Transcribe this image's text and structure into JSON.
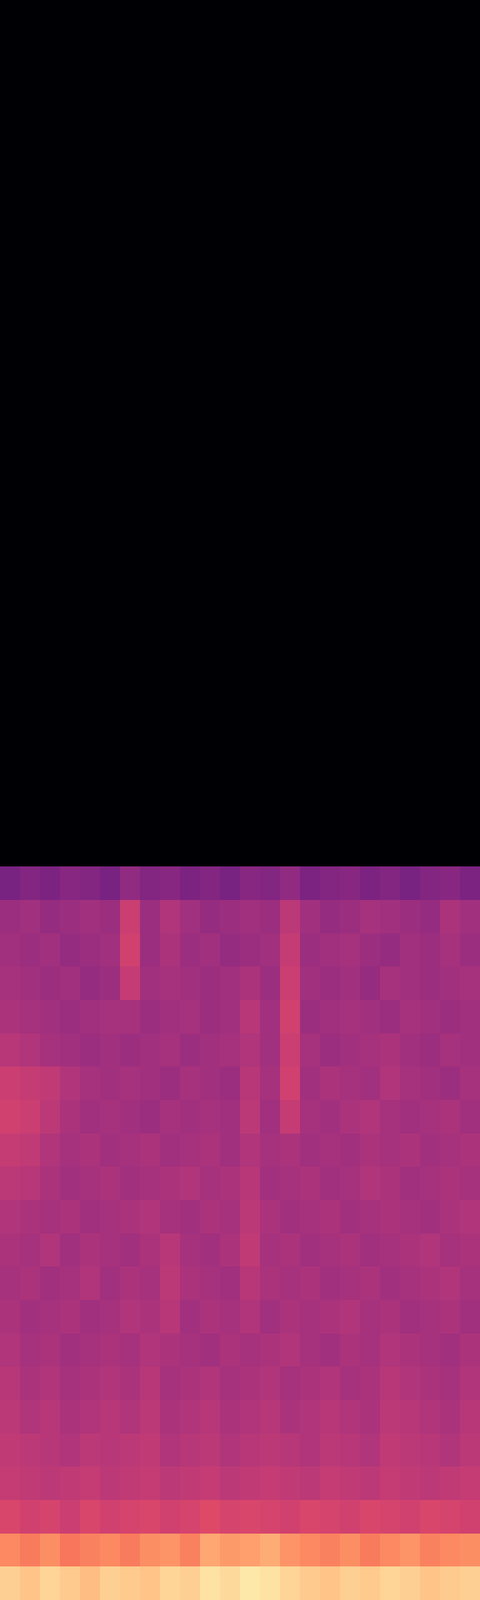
{
  "chart_data": {
    "type": "heatmap",
    "tick_labels": false,
    "color_range": [
      -80,
      0
    ],
    "cells": [
      [
        -80,
        -80,
        -80,
        -80,
        -80,
        -80,
        -80,
        -80,
        -80,
        -80,
        -80,
        -80,
        -80,
        -80,
        -80,
        -80,
        -80,
        -80,
        -80,
        -80,
        -80,
        -80,
        -80,
        -80
      ],
      [
        -80,
        -80,
        -80,
        -80,
        -80,
        -80,
        -80,
        -80,
        -80,
        -80,
        -80,
        -80,
        -80,
        -80,
        -80,
        -80,
        -80,
        -80,
        -80,
        -80,
        -80,
        -80,
        -80,
        -80
      ],
      [
        -80,
        -80,
        -80,
        -80,
        -80,
        -80,
        -80,
        -80,
        -80,
        -80,
        -80,
        -80,
        -80,
        -80,
        -80,
        -80,
        -80,
        -80,
        -80,
        -80,
        -80,
        -80,
        -80,
        -80
      ],
      [
        -80,
        -80,
        -80,
        -80,
        -80,
        -80,
        -80,
        -80,
        -80,
        -80,
        -80,
        -80,
        -80,
        -80,
        -80,
        -80,
        -80,
        -80,
        -80,
        -80,
        -80,
        -80,
        -80,
        -80
      ],
      [
        -80,
        -80,
        -80,
        -80,
        -80,
        -80,
        -80,
        -80,
        -80,
        -80,
        -80,
        -80,
        -80,
        -80,
        -80,
        -80,
        -80,
        -80,
        -80,
        -80,
        -80,
        -80,
        -80,
        -80
      ],
      [
        -80,
        -80,
        -80,
        -80,
        -80,
        -80,
        -80,
        -80,
        -80,
        -80,
        -80,
        -80,
        -80,
        -80,
        -80,
        -80,
        -80,
        -80,
        -80,
        -80,
        -80,
        -80,
        -80,
        -80
      ],
      [
        -80,
        -80,
        -80,
        -80,
        -80,
        -80,
        -80,
        -80,
        -80,
        -80,
        -80,
        -80,
        -80,
        -80,
        -80,
        -80,
        -80,
        -80,
        -80,
        -80,
        -80,
        -80,
        -80,
        -80
      ],
      [
        -80,
        -80,
        -80,
        -80,
        -80,
        -80,
        -80,
        -80,
        -80,
        -80,
        -80,
        -80,
        -80,
        -80,
        -80,
        -80,
        -80,
        -80,
        -80,
        -80,
        -80,
        -80,
        -80,
        -80
      ],
      [
        -80,
        -80,
        -80,
        -80,
        -80,
        -80,
        -80,
        -80,
        -80,
        -80,
        -80,
        -80,
        -80,
        -80,
        -80,
        -80,
        -80,
        -80,
        -80,
        -80,
        -80,
        -80,
        -80,
        -80
      ],
      [
        -80,
        -80,
        -80,
        -80,
        -80,
        -80,
        -80,
        -80,
        -80,
        -80,
        -80,
        -80,
        -80,
        -80,
        -80,
        -80,
        -80,
        -80,
        -80,
        -80,
        -80,
        -80,
        -80,
        -80
      ],
      [
        -80,
        -80,
        -80,
        -80,
        -80,
        -80,
        -80,
        -80,
        -80,
        -80,
        -80,
        -80,
        -80,
        -80,
        -80,
        -80,
        -80,
        -80,
        -80,
        -80,
        -80,
        -80,
        -80,
        -80
      ],
      [
        -80,
        -80,
        -80,
        -80,
        -80,
        -80,
        -80,
        -80,
        -80,
        -80,
        -80,
        -80,
        -80,
        -80,
        -80,
        -80,
        -80,
        -80,
        -80,
        -80,
        -80,
        -80,
        -80,
        -80
      ],
      [
        -80,
        -80,
        -80,
        -80,
        -80,
        -80,
        -80,
        -80,
        -80,
        -80,
        -80,
        -80,
        -80,
        -80,
        -80,
        -80,
        -80,
        -80,
        -80,
        -80,
        -80,
        -80,
        -80,
        -80
      ],
      [
        -80,
        -80,
        -80,
        -80,
        -80,
        -80,
        -80,
        -80,
        -80,
        -80,
        -80,
        -80,
        -80,
        -80,
        -80,
        -80,
        -80,
        -80,
        -80,
        -80,
        -80,
        -80,
        -80,
        -80
      ],
      [
        -80,
        -80,
        -80,
        -80,
        -80,
        -80,
        -80,
        -80,
        -80,
        -80,
        -80,
        -80,
        -80,
        -80,
        -80,
        -80,
        -80,
        -80,
        -80,
        -80,
        -80,
        -80,
        -80,
        -80
      ],
      [
        -80,
        -80,
        -80,
        -80,
        -80,
        -80,
        -80,
        -80,
        -80,
        -80,
        -80,
        -80,
        -80,
        -80,
        -80,
        -80,
        -80,
        -80,
        -80,
        -80,
        -80,
        -80,
        -80,
        -80
      ],
      [
        -80,
        -80,
        -80,
        -80,
        -80,
        -80,
        -80,
        -80,
        -80,
        -80,
        -80,
        -80,
        -80,
        -80,
        -80,
        -80,
        -80,
        -80,
        -80,
        -80,
        -80,
        -80,
        -80,
        -80
      ],
      [
        -80,
        -80,
        -80,
        -80,
        -80,
        -80,
        -80,
        -80,
        -80,
        -80,
        -80,
        -80,
        -80,
        -80,
        -80,
        -80,
        -80,
        -80,
        -80,
        -80,
        -80,
        -80,
        -80,
        -80
      ],
      [
        -80,
        -80,
        -80,
        -80,
        -80,
        -80,
        -80,
        -80,
        -80,
        -80,
        -80,
        -80,
        -80,
        -80,
        -80,
        -80,
        -80,
        -80,
        -80,
        -80,
        -80,
        -80,
        -80,
        -80
      ],
      [
        -80,
        -80,
        -80,
        -80,
        -80,
        -80,
        -80,
        -80,
        -80,
        -80,
        -80,
        -80,
        -80,
        -80,
        -80,
        -80,
        -80,
        -80,
        -80,
        -80,
        -80,
        -80,
        -80,
        -80
      ],
      [
        -80,
        -80,
        -80,
        -80,
        -80,
        -80,
        -80,
        -80,
        -80,
        -80,
        -80,
        -80,
        -80,
        -80,
        -80,
        -80,
        -80,
        -80,
        -80,
        -80,
        -80,
        -80,
        -80,
        -80
      ],
      [
        -80,
        -80,
        -80,
        -80,
        -80,
        -80,
        -80,
        -80,
        -80,
        -80,
        -80,
        -80,
        -80,
        -80,
        -80,
        -80,
        -80,
        -80,
        -80,
        -80,
        -80,
        -80,
        -80,
        -80
      ],
      [
        -80,
        -80,
        -80,
        -80,
        -80,
        -80,
        -80,
        -80,
        -80,
        -80,
        -80,
        -80,
        -80,
        -80,
        -80,
        -80,
        -80,
        -80,
        -80,
        -80,
        -80,
        -80,
        -80,
        -80
      ],
      [
        -80,
        -80,
        -80,
        -80,
        -80,
        -80,
        -80,
        -80,
        -80,
        -80,
        -80,
        -80,
        -80,
        -80,
        -80,
        -80,
        -80,
        -80,
        -80,
        -80,
        -80,
        -80,
        -80,
        -80
      ],
      [
        -80,
        -80,
        -80,
        -80,
        -80,
        -80,
        -80,
        -80,
        -80,
        -80,
        -80,
        -80,
        -80,
        -80,
        -80,
        -80,
        -80,
        -80,
        -80,
        -80,
        -80,
        -80,
        -80,
        -80
      ],
      [
        -80,
        -80,
        -80,
        -80,
        -80,
        -80,
        -80,
        -80,
        -80,
        -80,
        -80,
        -80,
        -80,
        -80,
        -80,
        -80,
        -80,
        -80,
        -80,
        -80,
        -80,
        -80,
        -80,
        -80
      ],
      [
        -52,
        -50,
        -51,
        -49,
        -50,
        -52,
        -47,
        -50,
        -49,
        -51,
        -50,
        -52,
        -49,
        -50,
        -47,
        -51,
        -50,
        -49,
        -51,
        -50,
        -52,
        -50,
        -49,
        -51
      ],
      [
        -45,
        -44,
        -46,
        -45,
        -44,
        -45,
        -36,
        -45,
        -41,
        -44,
        -46,
        -45,
        -44,
        -45,
        -39,
        -44,
        -46,
        -45,
        -43,
        -44,
        -45,
        -46,
        -42,
        -44
      ],
      [
        -44,
        -45,
        -44,
        -46,
        -45,
        -44,
        -35,
        -45,
        -42,
        -45,
        -44,
        -46,
        -45,
        -44,
        -37,
        -45,
        -44,
        -43,
        -45,
        -46,
        -44,
        -45,
        -43,
        -45
      ],
      [
        -43,
        -44,
        -45,
        -44,
        -46,
        -45,
        -37,
        -44,
        -43,
        -44,
        -45,
        -44,
        -42,
        -45,
        -36,
        -44,
        -45,
        -44,
        -46,
        -43,
        -44,
        -45,
        -44,
        -43
      ],
      [
        -42,
        -43,
        -44,
        -45,
        -44,
        -43,
        -43,
        -45,
        -44,
        -43,
        -45,
        -44,
        -40,
        -44,
        -35,
        -45,
        -44,
        -43,
        -44,
        -45,
        -43,
        -44,
        -45,
        -44
      ],
      [
        -40,
        -41,
        -43,
        -44,
        -45,
        -44,
        -45,
        -44,
        -43,
        -45,
        -44,
        -43,
        -41,
        -44,
        -36,
        -43,
        -45,
        -44,
        -43,
        -42,
        -44,
        -45,
        -43,
        -44
      ],
      [
        -36,
        -37,
        -38,
        -41,
        -43,
        -44,
        -43,
        -44,
        -45,
        -43,
        -44,
        -45,
        -40,
        -43,
        -35,
        -44,
        -42,
        -43,
        -44,
        -41,
        -43,
        -44,
        -45,
        -43
      ],
      [
        -35,
        -36,
        -39,
        -42,
        -44,
        -43,
        -44,
        -45,
        -43,
        -44,
        -43,
        -44,
        -39,
        -44,
        -37,
        -43,
        -44,
        -42,
        -41,
        -43,
        -44,
        -43,
        -42,
        -44
      ],
      [
        -37,
        -38,
        -41,
        -43,
        -42,
        -44,
        -43,
        -42,
        -44,
        -43,
        -42,
        -44,
        -41,
        -43,
        -42,
        -44,
        -43,
        -44,
        -42,
        -43,
        -42,
        -44,
        -43,
        -42
      ],
      [
        -39,
        -40,
        -42,
        -44,
        -43,
        -42,
        -44,
        -43,
        -42,
        -41,
        -43,
        -42,
        -40,
        -44,
        -43,
        -42,
        -44,
        -43,
        -41,
        -42,
        -44,
        -43,
        -42,
        -43
      ],
      [
        -41,
        -42,
        -43,
        -42,
        -44,
        -43,
        -42,
        -41,
        -43,
        -44,
        -42,
        -43,
        -39,
        -42,
        -44,
        -43,
        -42,
        -44,
        -43,
        -42,
        -43,
        -44,
        -42,
        -41
      ],
      [
        -42,
        -43,
        -41,
        -44,
        -42,
        -43,
        -44,
        -42,
        -40,
        -43,
        -44,
        -42,
        -38,
        -43,
        -42,
        -44,
        -43,
        -42,
        -44,
        -43,
        -42,
        -41,
        -43,
        -42
      ],
      [
        -43,
        -42,
        -44,
        -43,
        -41,
        -44,
        -42,
        -43,
        -39,
        -42,
        -43,
        -44,
        -40,
        -42,
        -43,
        -42,
        -44,
        -43,
        -42,
        -44,
        -43,
        -42,
        -41,
        -43
      ],
      [
        -42,
        -44,
        -43,
        -42,
        -44,
        -43,
        -41,
        -42,
        -40,
        -44,
        -42,
        -43,
        -41,
        -44,
        -42,
        -43,
        -42,
        -41,
        -43,
        -42,
        -44,
        -43,
        -42,
        -44
      ],
      [
        -41,
        -43,
        -42,
        -44,
        -43,
        -42,
        -43,
        -41,
        -42,
        -43,
        -44,
        -42,
        -43,
        -42,
        -41,
        -43,
        -44,
        -42,
        -43,
        -41,
        -42,
        -43,
        -44,
        -42
      ],
      [
        -40,
        -42,
        -41,
        -43,
        -42,
        -41,
        -42,
        -40,
        -43,
        -42,
        -41,
        -43,
        -42,
        -41,
        -43,
        -42,
        -41,
        -43,
        -42,
        -40,
        -41,
        -42,
        -43,
        -41
      ],
      [
        -39,
        -41,
        -40,
        -42,
        -41,
        -40,
        -41,
        -39,
        -42,
        -41,
        -40,
        -42,
        -41,
        -40,
        -42,
        -41,
        -40,
        -41,
        -42,
        -39,
        -40,
        -41,
        -42,
        -40
      ],
      [
        -38,
        -39,
        -40,
        -41,
        -39,
        -40,
        -39,
        -38,
        -41,
        -40,
        -39,
        -41,
        -40,
        -39,
        -40,
        -41,
        -39,
        -40,
        -41,
        -38,
        -39,
        -40,
        -41,
        -39
      ],
      [
        -37,
        -38,
        -39,
        -38,
        -37,
        -39,
        -38,
        -37,
        -39,
        -38,
        -37,
        -39,
        -38,
        -37,
        -38,
        -39,
        -37,
        -38,
        -39,
        -37,
        -38,
        -39,
        -38,
        -37
      ],
      [
        -33,
        -35,
        -34,
        -36,
        -33,
        -35,
        -34,
        -33,
        -35,
        -34,
        -32,
        -34,
        -33,
        -34,
        -35,
        -33,
        -34,
        -35,
        -33,
        -34,
        -35,
        -33,
        -34,
        -35
      ],
      [
        -20,
        -22,
        -19,
        -23,
        -21,
        -20,
        -22,
        -19,
        -18,
        -21,
        -15,
        -17,
        -16,
        -14,
        -18,
        -20,
        -21,
        -19,
        -22,
        -20,
        -18,
        -21,
        -20,
        -19
      ],
      [
        -8,
        -10,
        -7,
        -9,
        -11,
        -8,
        -9,
        -10,
        -7,
        -8,
        -5,
        -6,
        -4,
        -5,
        -7,
        -9,
        -10,
        -8,
        -9,
        -7,
        -8,
        -10,
        -9,
        -8
      ]
    ]
  }
}
